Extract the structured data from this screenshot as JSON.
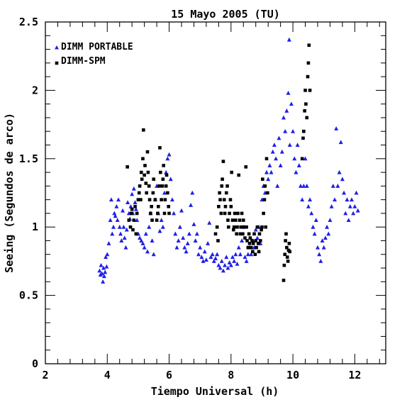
{
  "chart_data": {
    "type": "scatter",
    "title": "15 Mayo 2005 (TU)",
    "xlabel": "Tiempo Universal (h)",
    "ylabel": "Seeing (Segundos de arco)",
    "xlim": [
      2,
      13
    ],
    "ylim": [
      0,
      2.5
    ],
    "xticks": [
      "2",
      "4",
      "6",
      "8",
      "10",
      "12"
    ],
    "yticks": [
      "0",
      "0.5",
      "1",
      "1.5",
      "2",
      "2.5"
    ],
    "grid": false,
    "legend_position": "top-left",
    "series": [
      {
        "name": "DIMM PORTABLE",
        "marker": "triangle",
        "color": "#1f1fe6",
        "points": [
          [
            3.75,
            0.68
          ],
          [
            3.78,
            0.65
          ],
          [
            3.8,
            0.72
          ],
          [
            3.83,
            0.66
          ],
          [
            3.86,
            0.6
          ],
          [
            3.88,
            0.7
          ],
          [
            3.9,
            0.64
          ],
          [
            3.93,
            0.67
          ],
          [
            3.95,
            0.78
          ],
          [
            3.98,
            0.71
          ],
          [
            4.0,
            0.8
          ],
          [
            4.05,
            0.88
          ],
          [
            4.1,
            1.05
          ],
          [
            4.13,
            1.2
          ],
          [
            4.16,
            0.95
          ],
          [
            4.2,
            1.0
          ],
          [
            4.23,
            1.1
          ],
          [
            4.26,
            1.08
          ],
          [
            4.3,
            1.15
          ],
          [
            4.33,
            1.05
          ],
          [
            4.36,
            1.2
          ],
          [
            4.4,
            1.0
          ],
          [
            4.43,
            0.95
          ],
          [
            4.46,
            0.9
          ],
          [
            4.5,
            1.12
          ],
          [
            4.53,
            1.0
          ],
          [
            4.56,
            0.92
          ],
          [
            4.6,
            0.85
          ],
          [
            4.63,
            0.98
          ],
          [
            4.66,
            1.18
          ],
          [
            4.7,
            1.1
          ],
          [
            4.73,
            1.06
          ],
          [
            4.76,
            1.15
          ],
          [
            4.8,
            1.24
          ],
          [
            4.83,
            1.1
          ],
          [
            4.86,
            1.28
          ],
          [
            4.9,
            1.18
          ],
          [
            4.93,
            1.13
          ],
          [
            4.96,
            1.05
          ],
          [
            5.0,
            0.95
          ],
          [
            5.05,
            0.92
          ],
          [
            5.1,
            0.9
          ],
          [
            5.15,
            0.88
          ],
          [
            5.2,
            0.85
          ],
          [
            5.25,
            0.95
          ],
          [
            5.3,
            0.82
          ],
          [
            5.35,
            1.0
          ],
          [
            5.4,
            1.1
          ],
          [
            5.45,
            0.9
          ],
          [
            5.5,
            0.8
          ],
          [
            5.55,
            1.2
          ],
          [
            5.6,
            1.3
          ],
          [
            5.65,
            1.1
          ],
          [
            5.7,
            0.97
          ],
          [
            5.75,
            1.05
          ],
          [
            5.8,
            1.0
          ],
          [
            5.85,
            1.25
          ],
          [
            5.9,
            1.4
          ],
          [
            5.95,
            1.5
          ],
          [
            6.0,
            1.53
          ],
          [
            6.05,
            1.35
          ],
          [
            6.1,
            1.2
          ],
          [
            6.15,
            1.1
          ],
          [
            6.2,
            0.95
          ],
          [
            6.25,
            0.85
          ],
          [
            6.3,
            0.9
          ],
          [
            6.35,
            1.0
          ],
          [
            6.4,
            1.12
          ],
          [
            6.45,
            0.92
          ],
          [
            6.5,
            0.85
          ],
          [
            6.55,
            0.82
          ],
          [
            6.6,
            0.88
          ],
          [
            6.65,
            0.95
          ],
          [
            6.7,
            1.16
          ],
          [
            6.75,
            1.25
          ],
          [
            6.8,
            1.02
          ],
          [
            6.85,
            0.9
          ],
          [
            6.9,
            0.95
          ],
          [
            6.95,
            0.8
          ],
          [
            7.0,
            0.85
          ],
          [
            7.05,
            0.78
          ],
          [
            7.1,
            0.75
          ],
          [
            7.15,
            0.82
          ],
          [
            7.2,
            0.76
          ],
          [
            7.25,
            0.88
          ],
          [
            7.3,
            1.03
          ],
          [
            7.35,
            0.78
          ],
          [
            7.4,
            0.8
          ],
          [
            7.45,
            0.75
          ],
          [
            7.5,
            0.77
          ],
          [
            7.55,
            0.8
          ],
          [
            7.6,
            0.72
          ],
          [
            7.65,
            0.7
          ],
          [
            7.7,
            0.75
          ],
          [
            7.75,
            0.68
          ],
          [
            7.8,
            0.72
          ],
          [
            7.85,
            0.78
          ],
          [
            7.9,
            0.7
          ],
          [
            7.95,
            0.74
          ],
          [
            8.0,
            0.72
          ],
          [
            8.05,
            0.78
          ],
          [
            8.1,
            0.75
          ],
          [
            8.15,
            0.8
          ],
          [
            8.2,
            0.73
          ],
          [
            8.25,
            0.85
          ],
          [
            8.3,
            0.8
          ],
          [
            8.35,
            0.9
          ],
          [
            8.4,
            1.0
          ],
          [
            8.45,
            0.78
          ],
          [
            8.5,
            0.75
          ],
          [
            8.55,
            0.8
          ],
          [
            8.6,
            0.85
          ],
          [
            8.65,
            0.8
          ],
          [
            8.7,
            0.9
          ],
          [
            8.75,
            0.85
          ],
          [
            8.8,
            0.98
          ],
          [
            8.85,
            0.92
          ],
          [
            8.9,
            1.0
          ],
          [
            8.95,
            0.88
          ],
          [
            9.0,
            1.2
          ],
          [
            9.05,
            1.3
          ],
          [
            9.1,
            1.25
          ],
          [
            9.15,
            1.4
          ],
          [
            9.2,
            1.35
          ],
          [
            9.25,
            1.45
          ],
          [
            9.3,
            1.4
          ],
          [
            9.35,
            1.55
          ],
          [
            9.4,
            1.6
          ],
          [
            9.45,
            1.5
          ],
          [
            9.5,
            1.3
          ],
          [
            9.55,
            1.65
          ],
          [
            9.6,
            1.45
          ],
          [
            9.65,
            1.55
          ],
          [
            9.7,
            1.8
          ],
          [
            9.75,
            1.7
          ],
          [
            9.8,
            1.85
          ],
          [
            9.85,
            1.98
          ],
          [
            9.88,
            2.37
          ],
          [
            9.9,
            1.6
          ],
          [
            9.95,
            1.9
          ],
          [
            10.0,
            1.7
          ],
          [
            10.05,
            1.5
          ],
          [
            10.1,
            1.4
          ],
          [
            10.15,
            1.6
          ],
          [
            10.2,
            1.45
          ],
          [
            10.25,
            1.3
          ],
          [
            10.3,
            1.2
          ],
          [
            10.35,
            1.3
          ],
          [
            10.4,
            1.5
          ],
          [
            10.45,
            1.3
          ],
          [
            10.5,
            1.15
          ],
          [
            10.55,
            1.2
          ],
          [
            10.6,
            1.1
          ],
          [
            10.65,
            1.0
          ],
          [
            10.7,
            0.95
          ],
          [
            10.75,
            1.05
          ],
          [
            10.8,
            0.85
          ],
          [
            10.85,
            0.8
          ],
          [
            10.9,
            0.75
          ],
          [
            10.95,
            0.9
          ],
          [
            11.0,
            0.85
          ],
          [
            11.05,
            0.92
          ],
          [
            11.1,
            1.0
          ],
          [
            11.15,
            0.95
          ],
          [
            11.2,
            1.05
          ],
          [
            11.25,
            1.15
          ],
          [
            11.3,
            1.3
          ],
          [
            11.35,
            1.2
          ],
          [
            11.4,
            1.72
          ],
          [
            11.45,
            1.3
          ],
          [
            11.5,
            1.4
          ],
          [
            11.55,
            1.62
          ],
          [
            11.6,
            1.35
          ],
          [
            11.65,
            1.25
          ],
          [
            11.7,
            1.1
          ],
          [
            11.75,
            1.2
          ],
          [
            11.8,
            1.05
          ],
          [
            11.85,
            1.15
          ],
          [
            11.9,
            1.2
          ],
          [
            11.95,
            1.1
          ],
          [
            12.0,
            1.15
          ],
          [
            12.05,
            1.25
          ],
          [
            12.1,
            1.12
          ]
        ]
      },
      {
        "name": "DIMM-SPM",
        "marker": "square",
        "color": "#000000",
        "points": [
          [
            4.65,
            1.44
          ],
          [
            4.7,
            1.05
          ],
          [
            4.75,
            1.0
          ],
          [
            4.78,
            1.1
          ],
          [
            4.8,
            1.13
          ],
          [
            4.83,
            0.98
          ],
          [
            4.86,
            1.05
          ],
          [
            4.9,
            1.15
          ],
          [
            4.93,
            0.95
          ],
          [
            4.96,
            1.1
          ],
          [
            5.0,
            1.2
          ],
          [
            5.03,
            1.25
          ],
          [
            5.05,
            1.3
          ],
          [
            5.08,
            1.2
          ],
          [
            5.1,
            1.4
          ],
          [
            5.12,
            1.35
          ],
          [
            5.15,
            1.5
          ],
          [
            5.17,
            1.71
          ],
          [
            5.2,
            1.38
          ],
          [
            5.22,
            1.45
          ],
          [
            5.25,
            1.32
          ],
          [
            5.27,
            1.25
          ],
          [
            5.3,
            1.55
          ],
          [
            5.32,
            1.4
          ],
          [
            5.35,
            1.3
          ],
          [
            5.37,
            1.2
          ],
          [
            5.4,
            1.1
          ],
          [
            5.43,
            1.15
          ],
          [
            5.45,
            1.05
          ],
          [
            5.48,
            1.25
          ],
          [
            5.5,
            1.35
          ],
          [
            5.55,
            1.2
          ],
          [
            5.6,
            1.05
          ],
          [
            5.63,
            1.1
          ],
          [
            5.65,
            1.15
          ],
          [
            5.68,
            1.3
          ],
          [
            5.7,
            1.58
          ],
          [
            5.72,
            1.4
          ],
          [
            5.75,
            1.2
          ],
          [
            5.78,
            1.3
          ],
          [
            5.8,
            1.35
          ],
          [
            5.82,
            1.45
          ],
          [
            5.85,
            1.1
          ],
          [
            5.87,
            1.2
          ],
          [
            5.9,
            1.3
          ],
          [
            5.92,
            1.38
          ],
          [
            5.95,
            1.25
          ],
          [
            5.98,
            1.15
          ],
          [
            6.0,
            1.1
          ],
          [
            7.5,
            0.95
          ],
          [
            7.55,
            1.0
          ],
          [
            7.58,
            0.9
          ],
          [
            7.6,
            1.15
          ],
          [
            7.63,
            1.25
          ],
          [
            7.65,
            1.2
          ],
          [
            7.68,
            1.1
          ],
          [
            7.7,
            1.3
          ],
          [
            7.72,
            1.35
          ],
          [
            7.75,
            1.48
          ],
          [
            7.78,
            1.2
          ],
          [
            7.8,
            1.1
          ],
          [
            7.82,
            1.15
          ],
          [
            7.85,
            1.25
          ],
          [
            7.88,
            1.3
          ],
          [
            7.9,
            1.05
          ],
          [
            7.92,
            1.0
          ],
          [
            7.95,
            1.1
          ],
          [
            7.98,
            1.2
          ],
          [
            8.0,
            1.15
          ],
          [
            8.02,
            1.4
          ],
          [
            8.05,
            1.05
          ],
          [
            8.08,
            0.98
          ],
          [
            8.1,
            1.0
          ],
          [
            8.12,
            1.1
          ],
          [
            8.15,
            1.05
          ],
          [
            8.18,
            0.95
          ],
          [
            8.2,
            1.0
          ],
          [
            8.22,
            1.1
          ],
          [
            8.25,
            1.38
          ],
          [
            8.28,
            1.05
          ],
          [
            8.3,
            0.95
          ],
          [
            8.32,
            1.0
          ],
          [
            8.35,
            1.1
          ],
          [
            8.38,
            0.95
          ],
          [
            8.4,
            1.05
          ],
          [
            8.42,
            1.0
          ],
          [
            8.45,
            0.92
          ],
          [
            8.48,
            1.44
          ],
          [
            8.5,
            1.0
          ],
          [
            8.52,
            0.9
          ],
          [
            8.55,
            0.85
          ],
          [
            8.58,
            0.95
          ],
          [
            8.6,
            0.88
          ],
          [
            8.62,
            0.92
          ],
          [
            8.65,
            0.85
          ],
          [
            8.68,
            0.9
          ],
          [
            8.7,
            0.82
          ],
          [
            8.72,
            0.88
          ],
          [
            8.75,
            0.95
          ],
          [
            8.78,
            0.8
          ],
          [
            8.8,
            0.9
          ],
          [
            8.82,
            0.85
          ],
          [
            8.85,
            1.0
          ],
          [
            8.88,
            0.88
          ],
          [
            8.9,
            0.82
          ],
          [
            8.92,
            0.95
          ],
          [
            8.95,
            0.9
          ],
          [
            8.98,
            0.98
          ],
          [
            9.0,
            1.0
          ],
          [
            9.02,
            1.35
          ],
          [
            9.05,
            1.1
          ],
          [
            9.08,
            1.2
          ],
          [
            9.1,
            1.3
          ],
          [
            9.12,
            1.0
          ],
          [
            9.15,
            1.5
          ],
          [
            9.18,
            1.25
          ],
          [
            9.7,
            0.61
          ],
          [
            9.72,
            0.72
          ],
          [
            9.74,
            0.8
          ],
          [
            9.76,
            0.9
          ],
          [
            9.78,
            0.95
          ],
          [
            9.8,
            0.85
          ],
          [
            9.82,
            0.78
          ],
          [
            9.84,
            0.75
          ],
          [
            9.86,
            0.83
          ],
          [
            9.88,
            0.88
          ],
          [
            9.9,
            0.82
          ],
          [
            10.3,
            1.5
          ],
          [
            10.33,
            1.65
          ],
          [
            10.35,
            1.7
          ],
          [
            10.38,
            1.85
          ],
          [
            10.4,
            2.0
          ],
          [
            10.42,
            1.9
          ],
          [
            10.45,
            1.8
          ],
          [
            10.48,
            2.1
          ],
          [
            10.5,
            2.2
          ],
          [
            10.52,
            2.33
          ],
          [
            10.55,
            2.0
          ]
        ]
      }
    ]
  }
}
